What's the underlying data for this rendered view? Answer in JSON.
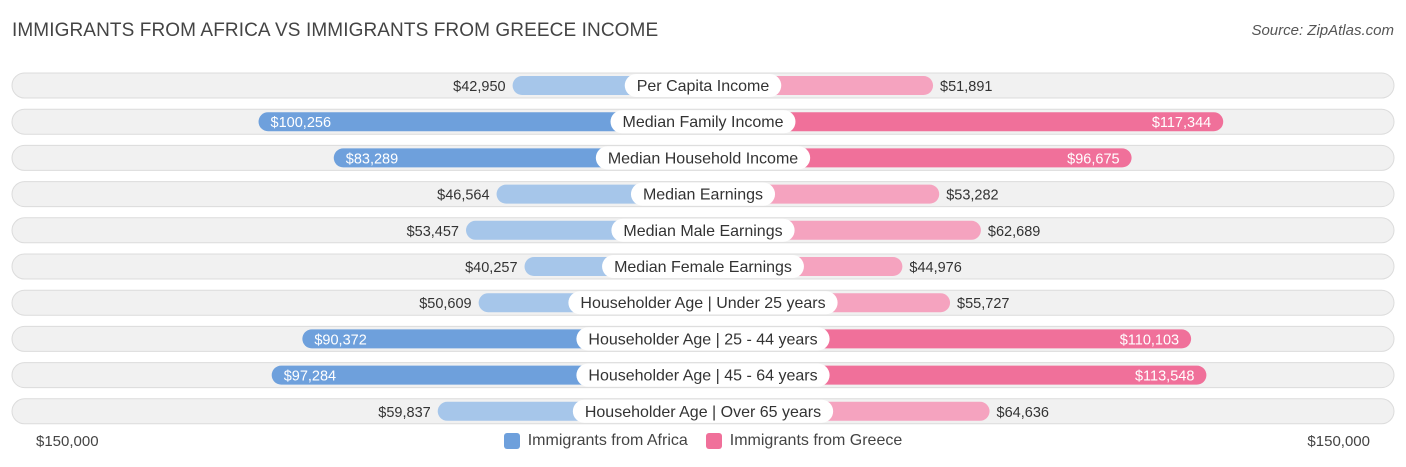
{
  "header": {
    "title": "IMMIGRANTS FROM AFRICA VS IMMIGRANTS FROM GREECE INCOME",
    "source": "Source: ZipAtlas.com"
  },
  "axis": {
    "left_label": "$150,000",
    "right_label": "$150,000"
  },
  "legend": {
    "left": {
      "label": "Immigrants from Africa",
      "color": "#6ea0dc"
    },
    "right": {
      "label": "Immigrants from Greece",
      "color": "#f0709a"
    }
  },
  "colors": {
    "left_strong": "#6ea0dc",
    "left_light": "#a6c6ea",
    "right_strong": "#f0709a",
    "right_light": "#f5a3bf",
    "row_bg": "#f1f1f1",
    "row_border": "#dcdcdc"
  },
  "chart_data": {
    "type": "bar",
    "orientation": "horizontal-diverging",
    "title": "IMMIGRANTS FROM AFRICA VS IMMIGRANTS FROM GREECE INCOME",
    "max_value": 150000,
    "categories": [
      "Per Capita Income",
      "Median Family Income",
      "Median Household Income",
      "Median Earnings",
      "Median Male Earnings",
      "Median Female Earnings",
      "Householder Age | Under 25 years",
      "Householder Age | 25 - 44 years",
      "Householder Age | 45 - 64 years",
      "Householder Age | Over 65 years"
    ],
    "series": [
      {
        "name": "Immigrants from Africa",
        "values": [
          42950,
          100256,
          83289,
          46564,
          53457,
          40257,
          50609,
          90372,
          97284,
          59837
        ],
        "labels": [
          "$42,950",
          "$100,256",
          "$83,289",
          "$46,564",
          "$53,457",
          "$40,257",
          "$50,609",
          "$90,372",
          "$97,284",
          "$59,837"
        ]
      },
      {
        "name": "Immigrants from Greece",
        "values": [
          51891,
          117344,
          96675,
          53282,
          62689,
          44976,
          55727,
          110103,
          113548,
          64636
        ],
        "labels": [
          "$51,891",
          "$117,344",
          "$96,675",
          "$53,282",
          "$62,689",
          "$44,976",
          "$55,727",
          "$110,103",
          "$113,548",
          "$64,636"
        ]
      }
    ]
  }
}
